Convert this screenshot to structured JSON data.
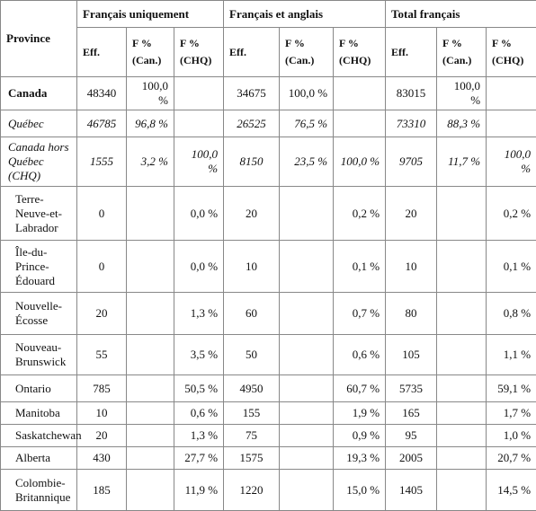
{
  "table": {
    "province_header": "Province",
    "groups": [
      "Français uniquement",
      "Français et anglais",
      "Total français"
    ],
    "subheaders": [
      [
        "Eff."
      ],
      [
        "F %",
        "(Can.)"
      ],
      [
        "F %",
        "(CHQ)"
      ],
      [
        "Eff."
      ],
      [
        "F %",
        "(Can.)"
      ],
      [
        "F %",
        "(CHQ)"
      ],
      [
        "Eff."
      ],
      [
        "F %",
        "(Can.)"
      ],
      [
        "F %",
        "(CHQ)"
      ]
    ],
    "rows": [
      {
        "province": "Canada",
        "style": "bold",
        "cells": [
          "48340",
          "100,0 %",
          null,
          "34675",
          "100,0 %",
          null,
          "83015",
          "100,0 %",
          null
        ]
      },
      {
        "province": "Québec",
        "style": "italic",
        "cells": [
          "46785",
          "96,8 %",
          null,
          "26525",
          "76,5 %",
          null,
          "73310",
          "88,3 %",
          null
        ]
      },
      {
        "province": "Canada hors Québec (CHQ)",
        "style": "italic",
        "cells": [
          "1555",
          "3,2 %",
          "100,0 %",
          "8150",
          "23,5 %",
          "100,0 %",
          "9705",
          "11,7 %",
          "100,0 %"
        ]
      },
      {
        "province": "Terre-Neuve-et-Labrador",
        "style": "indent",
        "cells": [
          "0",
          null,
          "0,0 %",
          "20",
          null,
          "0,2 %",
          "20",
          null,
          "0,2 %"
        ]
      },
      {
        "province": "Île-du-Prince-Édouard",
        "style": "indent",
        "cells": [
          "0",
          null,
          "0,0 %",
          "10",
          null,
          "0,1 %",
          "10",
          null,
          "0,1 %"
        ]
      },
      {
        "province": "Nouvelle-Écosse",
        "style": "indent",
        "cells": [
          "20",
          null,
          "1,3 %",
          "60",
          null,
          "0,7 %",
          "80",
          null,
          "0,8 %"
        ]
      },
      {
        "province": "Nouveau-Brunswick",
        "style": "indent",
        "cells": [
          "55",
          null,
          "3,5 %",
          "50",
          null,
          "0,6 %",
          "105",
          null,
          "1,1 %"
        ]
      },
      {
        "province": "Ontario",
        "style": "indent",
        "cells": [
          "785",
          null,
          "50,5 %",
          "4950",
          null,
          "60,7 %",
          "5735",
          null,
          "59,1 %"
        ]
      },
      {
        "province": "Manitoba",
        "style": "indent",
        "cells": [
          "10",
          null,
          "0,6 %",
          "155",
          null,
          "1,9 %",
          "165",
          null,
          "1,7 %"
        ]
      },
      {
        "province": "Saskatchewan",
        "style": "indent",
        "cells": [
          "20",
          null,
          "1,3 %",
          "75",
          null,
          "0,9 %",
          "95",
          null,
          "1,0 %"
        ]
      },
      {
        "province": "Alberta",
        "style": "indent",
        "cells": [
          "430",
          null,
          "27,7 %",
          "1575",
          null,
          "19,3 %",
          "2005",
          null,
          "20,7 %"
        ]
      },
      {
        "province": "Colombie-Britannique",
        "style": "indent",
        "cells": [
          "185",
          null,
          "11,9 %",
          "1220",
          null,
          "15,0 %",
          "1405",
          null,
          "14,5 %"
        ]
      }
    ]
  }
}
